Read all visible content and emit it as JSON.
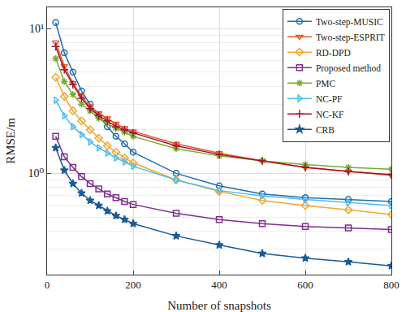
{
  "chart_data": {
    "type": "line",
    "x_label": "Number of snapshots",
    "y_label": "RMSE/m",
    "x": [
      20,
      40,
      60,
      80,
      100,
      120,
      140,
      160,
      180,
      200,
      300,
      400,
      500,
      600,
      700,
      800
    ],
    "series": [
      {
        "name": "Two-step-MUSIC",
        "color": "#1f6fb0",
        "marker": "circle",
        "values": [
          11,
          6.8,
          5.0,
          3.7,
          3.0,
          2.5,
          2.1,
          1.8,
          1.6,
          1.4,
          1.0,
          0.82,
          0.72,
          0.68,
          0.66,
          0.64
        ]
      },
      {
        "name": "Two-step-ESPRIT",
        "color": "#e8572a",
        "marker": "triangle-down",
        "values": [
          8.0,
          5.5,
          4.2,
          3.4,
          2.9,
          2.6,
          2.4,
          2.2,
          2.05,
          1.95,
          1.6,
          1.38,
          1.22,
          1.1,
          1.03,
          0.97
        ]
      },
      {
        "name": "RD-DPD",
        "color": "#f0a830",
        "marker": "diamond",
        "values": [
          4.6,
          3.4,
          2.7,
          2.3,
          2.0,
          1.75,
          1.55,
          1.4,
          1.28,
          1.18,
          0.9,
          0.75,
          0.65,
          0.6,
          0.56,
          0.52
        ]
      },
      {
        "name": "Proposed method",
        "color": "#7e2f8e",
        "marker": "square",
        "values": [
          1.8,
          1.3,
          1.1,
          0.95,
          0.85,
          0.78,
          0.72,
          0.68,
          0.64,
          0.61,
          0.53,
          0.48,
          0.45,
          0.43,
          0.42,
          0.41
        ]
      },
      {
        "name": "PMC",
        "color": "#77ac30",
        "marker": "asterisk",
        "values": [
          6.2,
          4.3,
          3.5,
          3.0,
          2.7,
          2.4,
          2.2,
          2.05,
          1.92,
          1.8,
          1.48,
          1.32,
          1.22,
          1.15,
          1.1,
          1.07
        ]
      },
      {
        "name": "NC-PF",
        "color": "#4dbeee",
        "marker": "triangle-right",
        "values": [
          3.2,
          2.5,
          2.1,
          1.85,
          1.65,
          1.5,
          1.38,
          1.28,
          1.2,
          1.12,
          0.9,
          0.76,
          0.7,
          0.66,
          0.63,
          0.6
        ]
      },
      {
        "name": "NC-KF",
        "color": "#a2142f",
        "marker": "cross",
        "values": [
          7.5,
          5.2,
          4.1,
          3.3,
          2.8,
          2.5,
          2.3,
          2.1,
          2.0,
          1.9,
          1.55,
          1.35,
          1.22,
          1.1,
          1.03,
          0.98
        ]
      },
      {
        "name": "CRB",
        "color": "#1a5a96",
        "marker": "star",
        "values": [
          1.5,
          1.05,
          0.85,
          0.73,
          0.65,
          0.6,
          0.55,
          0.51,
          0.48,
          0.45,
          0.37,
          0.32,
          0.28,
          0.26,
          0.245,
          0.23
        ]
      }
    ],
    "xlim": [
      0,
      800
    ],
    "xticks": [
      0,
      200,
      400,
      600,
      800
    ],
    "ylim": [
      0.2,
      14
    ],
    "yticks": [
      {
        "value": 1,
        "label": "10⁰"
      },
      {
        "value": 10,
        "label": "10¹"
      }
    ],
    "log": "y",
    "grid": true,
    "legend": "upper right"
  }
}
